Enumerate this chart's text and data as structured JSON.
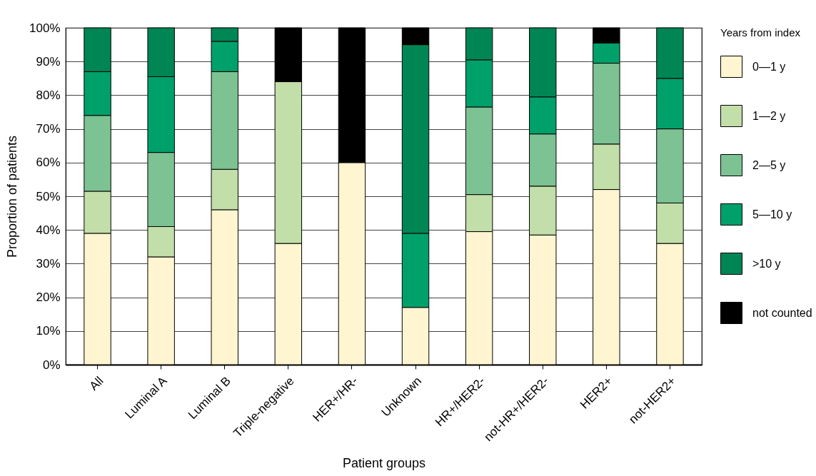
{
  "chart_data": {
    "type": "bar",
    "stacked": true,
    "xlabel": "Patient groups",
    "ylabel": "Proportion of patients",
    "legend_title": "Years from index",
    "legend": "right",
    "grid": "y",
    "categories": [
      "All",
      "Luminal A",
      "Luminal B",
      "Triple-negative",
      "HER+/HR-",
      "Unknown",
      "HR+/HER2-",
      "not-HR+/HER2-",
      "HER2+",
      "not-HER2+"
    ],
    "ylim": [
      0,
      100
    ],
    "yticks": [
      {
        "value": 0,
        "label": "0%"
      },
      {
        "value": 10,
        "label": "10%"
      },
      {
        "value": 20,
        "label": "20%"
      },
      {
        "value": 30,
        "label": "30%"
      },
      {
        "value": 40,
        "label": "40%"
      },
      {
        "value": 50,
        "label": "50%"
      },
      {
        "value": 60,
        "label": "60%"
      },
      {
        "value": 70,
        "label": "70%"
      },
      {
        "value": 80,
        "label": "80%"
      },
      {
        "value": 90,
        "label": "90%"
      },
      {
        "value": 100,
        "label": "100%"
      }
    ],
    "series": [
      {
        "name": "0—1 y",
        "color": "#fff5d0",
        "values": [
          39,
          32,
          46,
          36,
          60,
          17,
          39.5,
          38.5,
          52,
          36
        ]
      },
      {
        "name": "1—2 y",
        "color": "#c2dea9",
        "values": [
          12.5,
          9,
          12,
          48,
          0,
          0,
          11,
          14.5,
          13.5,
          12
        ]
      },
      {
        "name": "2—5 y",
        "color": "#7dc292",
        "values": [
          22.5,
          22,
          29,
          0,
          0,
          0,
          26,
          15.5,
          24,
          22
        ]
      },
      {
        "name": "5—10 y",
        "color": "#00a06a",
        "values": [
          13,
          22.5,
          9,
          0,
          0,
          22,
          14,
          11,
          6,
          15
        ]
      },
      {
        "name": ">10 y",
        "color": "#008555",
        "values": [
          13,
          14.5,
          4,
          0,
          0,
          56,
          9.5,
          20.5,
          0,
          15
        ]
      },
      {
        "name": "not counted",
        "color": "#000000",
        "values": [
          0,
          0,
          0,
          16,
          40,
          5,
          0,
          0,
          4.5,
          0
        ]
      }
    ]
  }
}
